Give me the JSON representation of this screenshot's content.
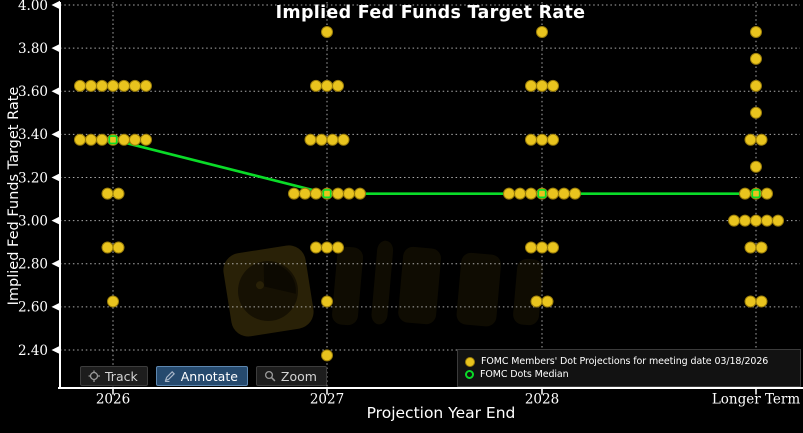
{
  "title": "Implied Fed Funds Target Rate",
  "y_axis": {
    "title": "Implied Fed Funds Target Rate",
    "ticks": [
      "4.00",
      "3.80",
      "3.60",
      "3.40",
      "3.20",
      "3.00",
      "2.80",
      "2.60",
      "2.40"
    ]
  },
  "x_axis": {
    "title": "Projection Year End",
    "categories": [
      "2026",
      "2027",
      "2028",
      "Longer Term"
    ]
  },
  "legend": {
    "items": [
      {
        "label": "FOMC Members' Dot Projections for meeting date 03/18/2026",
        "marker": "filled-yellow-dot"
      },
      {
        "label": "FOMC Dots Median",
        "marker": "open-green-circle"
      }
    ]
  },
  "toolbar": {
    "buttons": [
      {
        "label": "Track",
        "icon": "track-crosshair-icon",
        "active": false
      },
      {
        "label": "Annotate",
        "icon": "annotate-pencil-icon",
        "active": true
      },
      {
        "label": "Zoom",
        "icon": "zoom-magnifier-icon",
        "active": false
      }
    ]
  },
  "colors": {
    "background": "#000000",
    "dot_fill": "#E9C41E",
    "dot_edge": "#9B7E0B",
    "median_green": "#0ADC28",
    "gridline": "#C9C9C9",
    "axis": "#FFFFFF",
    "text": "#FFFFFF",
    "legend_background": "#121212",
    "legend_border": "#3B3B3B",
    "toolbar_active_background": "#264A6E"
  },
  "chart_data": {
    "type": "scatter",
    "title": "Implied Fed Funds Target Rate",
    "xlabel": "Projection Year End",
    "ylabel": "Implied Fed Funds Target Rate",
    "categories": [
      "2026",
      "2027",
      "2028",
      "Longer Term"
    ],
    "yticks": [
      4.0,
      3.8,
      3.6,
      3.4,
      3.2,
      3.0,
      2.8,
      2.6,
      2.4
    ],
    "ylim": [
      2.22,
      4.02
    ],
    "grid": true,
    "legend_position": "bottom-right",
    "dot_groups": [
      {
        "category": "2026",
        "dots": [
          {
            "rate": 3.625,
            "count": 7
          },
          {
            "rate": 3.375,
            "count": 7
          },
          {
            "rate": 3.125,
            "count": 2
          },
          {
            "rate": 2.875,
            "count": 2
          },
          {
            "rate": 2.625,
            "count": 1
          }
        ]
      },
      {
        "category": "2027",
        "dots": [
          {
            "rate": 3.875,
            "count": 1
          },
          {
            "rate": 3.625,
            "count": 3
          },
          {
            "rate": 3.375,
            "count": 4
          },
          {
            "rate": 3.125,
            "count": 7
          },
          {
            "rate": 2.875,
            "count": 3
          },
          {
            "rate": 2.625,
            "count": 1
          },
          {
            "rate": 2.375,
            "count": 1
          }
        ]
      },
      {
        "category": "2028",
        "dots": [
          {
            "rate": 3.875,
            "count": 1
          },
          {
            "rate": 3.625,
            "count": 3
          },
          {
            "rate": 3.375,
            "count": 3
          },
          {
            "rate": 3.125,
            "count": 7
          },
          {
            "rate": 2.875,
            "count": 3
          },
          {
            "rate": 2.625,
            "count": 2
          }
        ]
      },
      {
        "category": "Longer Term",
        "dots": [
          {
            "rate": 3.875,
            "count": 1
          },
          {
            "rate": 3.75,
            "count": 1
          },
          {
            "rate": 3.625,
            "count": 1
          },
          {
            "rate": 3.5,
            "count": 1
          },
          {
            "rate": 3.375,
            "count": 2
          },
          {
            "rate": 3.25,
            "count": 1
          },
          {
            "rate": 3.125,
            "count": 3
          },
          {
            "rate": 3.0,
            "count": 5
          },
          {
            "rate": 2.875,
            "count": 2
          },
          {
            "rate": 2.625,
            "count": 2
          }
        ]
      }
    ],
    "median_series": {
      "name": "FOMC Dots Median",
      "values": [
        3.375,
        3.125,
        3.125,
        3.125
      ]
    }
  }
}
